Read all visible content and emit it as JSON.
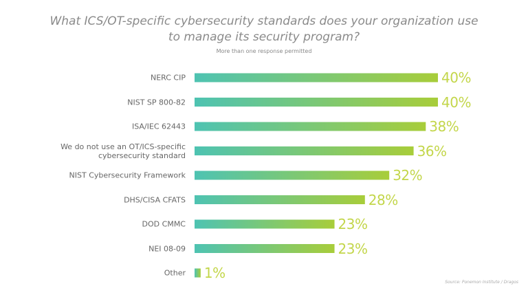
{
  "chart_data": {
    "type": "bar",
    "orientation": "horizontal",
    "title": "What ICS/OT-specific cybersecurity standards does your organization use\nto manage its security program?",
    "subtitle": "More than one response permitted",
    "source": "Source: Ponemon Institute / Dragos",
    "categories": [
      "NERC CIP",
      "NIST SP 800-82",
      "ISA/IEC 62443",
      "We do not use an OT/ICS-specific\ncybersecurity standard",
      "NIST Cybersecurity Framework",
      "DHS/CISA CFATS",
      "DOD CMMC",
      "NEI 08-09",
      "Other"
    ],
    "values": [
      40,
      40,
      38,
      36,
      32,
      28,
      23,
      23,
      1
    ],
    "value_labels": [
      "40%",
      "40%",
      "38%",
      "36%",
      "32%",
      "28%",
      "23%",
      "23%",
      "1%"
    ],
    "colors": [
      "#4ec3b2",
      "#a8cd3a"
    ]
  }
}
